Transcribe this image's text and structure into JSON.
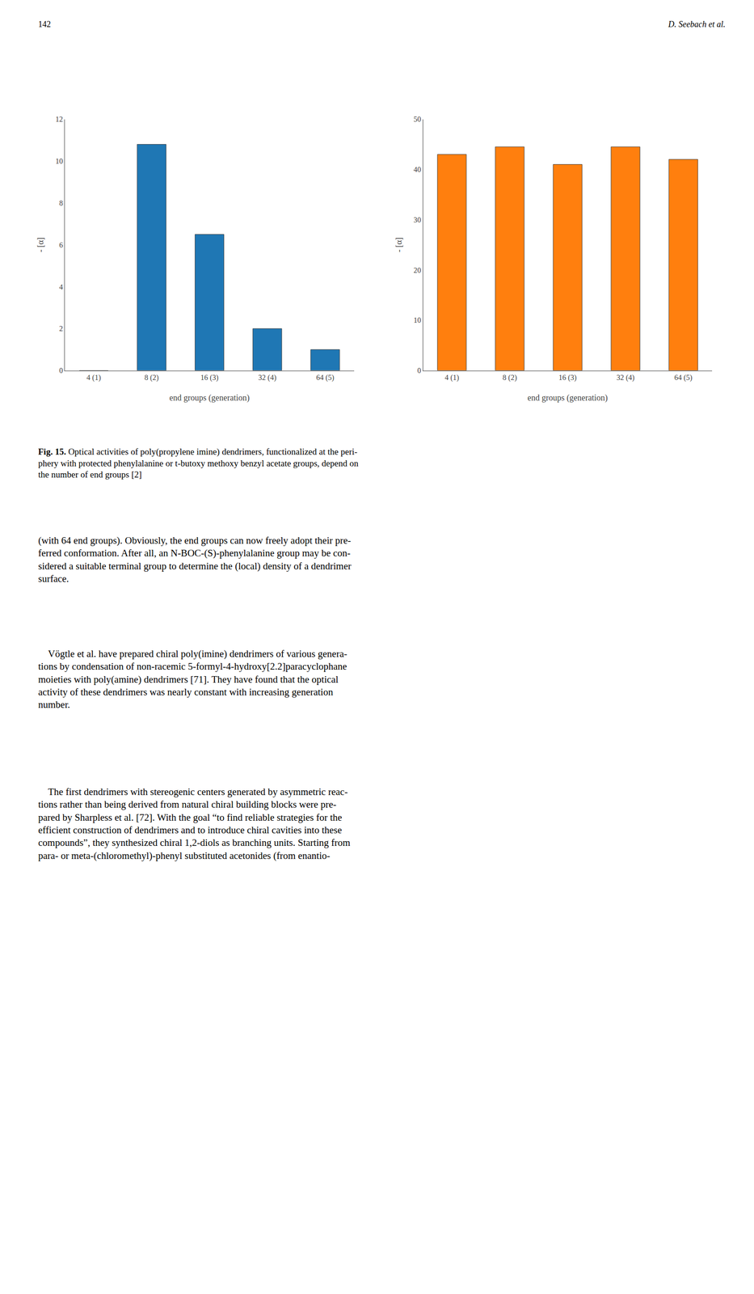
{
  "title": "Fig. 15. Optical activities of poly(propylene imine) dendrimers, functionalized at the peri-\nphery with protected phenylalanine or t-butoxy methoxy benzyl acetate groups, depend on\nthe number of end groups [2]",
  "annotations": [
    "142",
    "D. Seebach et al.",
    "(with 64 end groups). Obviously, the end groups can now freely adopt their pre-\nferred conformation. After all, an ⁠N-BOC-(⁠S)-phenylalanine group may be con-\nsidered a suitable terminal group to determine the (local) density of a dendrimer\nsurface.",
    "    Vögtle et al. have prepared chiral poly(imine) dendrimers of various genera-\ntions by condensation of non-racemic 5-formyl-4-hydroxy[2.2]paracyclophane\nmoieties with poly(amine) dendrimers [71]. They have found that the optical\nactivity of these dendrimers was nearly constant with increasing generation\nnumber.",
    "    The first dendrimers with stereogenic centers generated by asymmetric reac-\ntions rather than being derived from natural chiral building blocks were pre-\npared by Sharpless et al. [72]. With the goal “to find reliable strategies for the\nefficient construction of dendrimers and to introduce chiral cavities into these\ncompounds”, they synthesized chiral 1,2-diols as branching units. Starting from\n⁠para- or ⁠meta-(chloromethyl)-phenyl substituted acetonides (from enantio-"
  ],
  "chart_data": [
    {
      "type": "bar",
      "categories": [
        "4 (1)",
        "8 (2)",
        "16 (3)",
        "32 (4)",
        "64 (5)"
      ],
      "values": [
        0.0,
        10.8,
        6.5,
        2.0,
        1.0
      ],
      "xlabel": "end groups (generation)",
      "ylabel": "- [α]",
      "ylim": [
        0,
        12
      ],
      "yticks": [
        0,
        2,
        4,
        6,
        8,
        10,
        12
      ]
    },
    {
      "type": "bar",
      "categories": [
        "4 (1)",
        "8 (2)",
        "16 (3)",
        "32 (4)",
        "64 (5)"
      ],
      "values": [
        43.0,
        44.5,
        41.0,
        44.5,
        42.0
      ],
      "xlabel": "end groups (generation)",
      "ylabel": "- [α]",
      "ylim": [
        0,
        50
      ],
      "yticks": [
        0,
        10,
        20,
        30,
        40,
        50
      ]
    }
  ]
}
